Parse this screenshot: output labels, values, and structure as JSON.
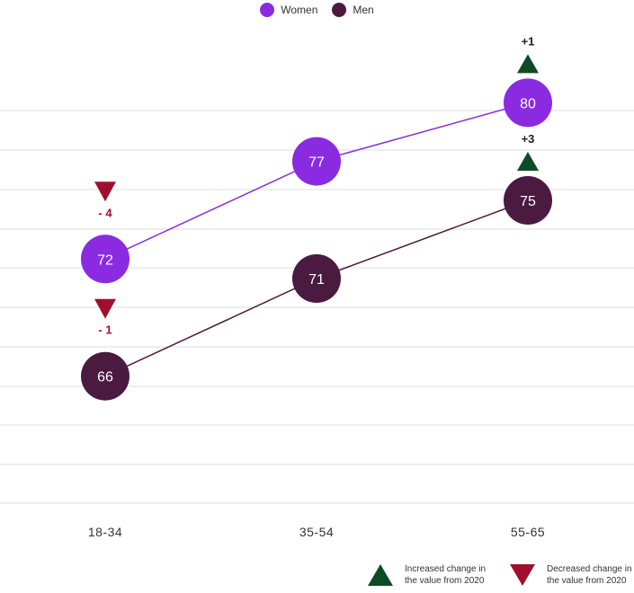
{
  "legend": {
    "women_label": "Women",
    "men_label": "Men"
  },
  "footer": {
    "increase_text": "Increased change in the value from 2020",
    "decrease_text": "Decreased change in the value from 2020"
  },
  "colors": {
    "women": "#8a2be2",
    "men": "#4a1a40",
    "increase": "#0f4a27",
    "decrease": "#a0102e",
    "grid": "#dddddd"
  },
  "chart_data": {
    "type": "line",
    "categories": [
      "18-34",
      "35-54",
      "55-65"
    ],
    "series": [
      {
        "name": "Women",
        "values": [
          72,
          77,
          80
        ],
        "changes": [
          "-4",
          null,
          "+1"
        ]
      },
      {
        "name": "Men",
        "values": [
          66,
          71,
          75
        ],
        "changes": [
          "-1",
          null,
          "+3"
        ]
      }
    ],
    "ylim": [
      59.5,
      82.5
    ],
    "grid": true,
    "legend_position": "top-center"
  }
}
